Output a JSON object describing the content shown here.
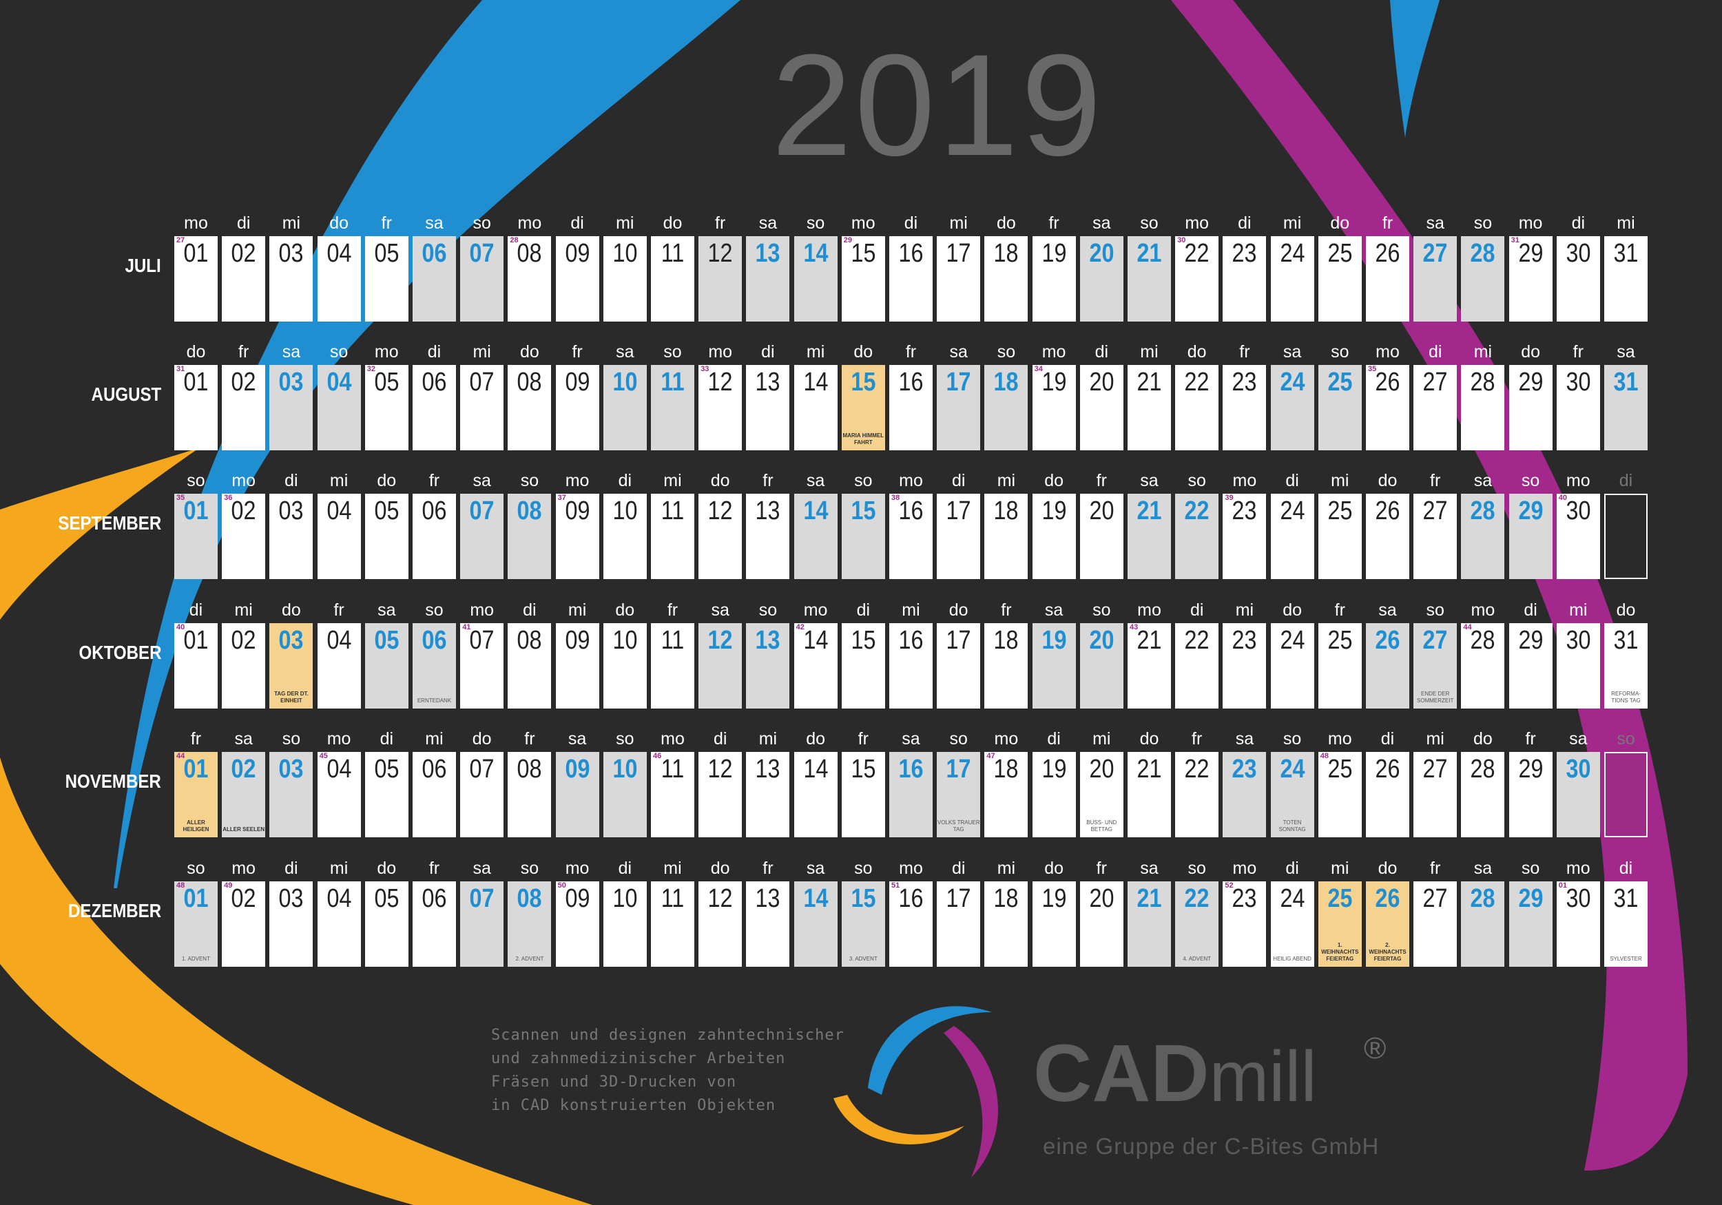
{
  "year": "2019",
  "colors": {
    "background": "#2b2a2a",
    "blue": "#1f8fd1",
    "magenta": "#a3288c",
    "orange": "#f5a81e",
    "weekend": "#d9d9d9",
    "holiday": "#f6d28f"
  },
  "months": [
    {
      "name": "JULI",
      "leading": 0,
      "trailing": 0,
      "weekdays": [
        "mo",
        "di",
        "mi",
        "do",
        "fr",
        "sa",
        "so",
        "mo",
        "di",
        "mi",
        "do",
        "fr",
        "sa",
        "so",
        "mo",
        "di",
        "mi",
        "do",
        "fr",
        "sa",
        "so",
        "mo",
        "di",
        "mi",
        "do",
        "fr",
        "sa",
        "so",
        "mo",
        "di",
        "mi"
      ],
      "days": [
        {
          "n": "01",
          "kw": "27"
        },
        {
          "n": "02"
        },
        {
          "n": "03"
        },
        {
          "n": "04"
        },
        {
          "n": "05"
        },
        {
          "n": "06",
          "t": "we"
        },
        {
          "n": "07",
          "t": "we"
        },
        {
          "n": "08",
          "kw": "28"
        },
        {
          "n": "09"
        },
        {
          "n": "10"
        },
        {
          "n": "11"
        },
        {
          "n": "12",
          "t": "gray"
        },
        {
          "n": "13",
          "t": "we"
        },
        {
          "n": "14",
          "t": "we"
        },
        {
          "n": "15",
          "kw": "29"
        },
        {
          "n": "16"
        },
        {
          "n": "17"
        },
        {
          "n": "18"
        },
        {
          "n": "19"
        },
        {
          "n": "20",
          "t": "we"
        },
        {
          "n": "21",
          "t": "we"
        },
        {
          "n": "22",
          "kw": "30"
        },
        {
          "n": "23"
        },
        {
          "n": "24"
        },
        {
          "n": "25"
        },
        {
          "n": "26"
        },
        {
          "n": "27",
          "t": "we"
        },
        {
          "n": "28",
          "t": "we"
        },
        {
          "n": "29",
          "kw": "31"
        },
        {
          "n": "30"
        },
        {
          "n": "31"
        }
      ]
    },
    {
      "name": "AUGUST",
      "weekdays": [
        "do",
        "fr",
        "sa",
        "so",
        "mo",
        "di",
        "mi",
        "do",
        "fr",
        "sa",
        "so",
        "mo",
        "di",
        "mi",
        "do",
        "fr",
        "sa",
        "so",
        "mo",
        "di",
        "mi",
        "do",
        "fr",
        "sa",
        "so",
        "mo",
        "di",
        "mi",
        "do",
        "fr",
        "sa"
      ],
      "days": [
        {
          "n": "01",
          "kw": "31"
        },
        {
          "n": "02"
        },
        {
          "n": "03",
          "t": "we"
        },
        {
          "n": "04",
          "t": "we"
        },
        {
          "n": "05",
          "kw": "32"
        },
        {
          "n": "06"
        },
        {
          "n": "07"
        },
        {
          "n": "08"
        },
        {
          "n": "09"
        },
        {
          "n": "10",
          "t": "we"
        },
        {
          "n": "11",
          "t": "we"
        },
        {
          "n": "12",
          "kw": "33"
        },
        {
          "n": "13"
        },
        {
          "n": "14"
        },
        {
          "n": "15",
          "t": "hol",
          "note": "MARIA HIMMEL FAHRT"
        },
        {
          "n": "16"
        },
        {
          "n": "17",
          "t": "we"
        },
        {
          "n": "18",
          "t": "we"
        },
        {
          "n": "19",
          "kw": "34"
        },
        {
          "n": "20"
        },
        {
          "n": "21"
        },
        {
          "n": "22"
        },
        {
          "n": "23"
        },
        {
          "n": "24",
          "t": "we"
        },
        {
          "n": "25",
          "t": "we"
        },
        {
          "n": "26",
          "kw": "35"
        },
        {
          "n": "27"
        },
        {
          "n": "28"
        },
        {
          "n": "29"
        },
        {
          "n": "30"
        },
        {
          "n": "31",
          "t": "we"
        }
      ]
    },
    {
      "name": "SEPTEMBER",
      "weekdays": [
        "so",
        "mo",
        "di",
        "mi",
        "do",
        "fr",
        "sa",
        "so",
        "mo",
        "di",
        "mi",
        "do",
        "fr",
        "sa",
        "so",
        "mo",
        "di",
        "mi",
        "do",
        "fr",
        "sa",
        "so",
        "mo",
        "di",
        "mi",
        "do",
        "fr",
        "sa",
        "so",
        "mo",
        "di"
      ],
      "days": [
        {
          "n": "01",
          "kw": "35",
          "t": "we"
        },
        {
          "n": "02",
          "kw": "36"
        },
        {
          "n": "03"
        },
        {
          "n": "04"
        },
        {
          "n": "05"
        },
        {
          "n": "06"
        },
        {
          "n": "07",
          "t": "we"
        },
        {
          "n": "08",
          "t": "we"
        },
        {
          "n": "09",
          "kw": "37"
        },
        {
          "n": "10"
        },
        {
          "n": "11"
        },
        {
          "n": "12"
        },
        {
          "n": "13"
        },
        {
          "n": "14",
          "t": "we"
        },
        {
          "n": "15",
          "t": "we"
        },
        {
          "n": "16",
          "kw": "38"
        },
        {
          "n": "17"
        },
        {
          "n": "18"
        },
        {
          "n": "19"
        },
        {
          "n": "20"
        },
        {
          "n": "21",
          "t": "we"
        },
        {
          "n": "22",
          "t": "we"
        },
        {
          "n": "23",
          "kw": "39"
        },
        {
          "n": "24"
        },
        {
          "n": "25"
        },
        {
          "n": "26"
        },
        {
          "n": "27"
        },
        {
          "n": "28",
          "t": "we"
        },
        {
          "n": "29",
          "t": "we"
        },
        {
          "n": "30",
          "kw": "40"
        },
        {
          "n": "",
          "t": "empty"
        }
      ]
    },
    {
      "name": "OKTOBER",
      "weekdays": [
        "di",
        "mi",
        "do",
        "fr",
        "sa",
        "so",
        "mo",
        "di",
        "mi",
        "do",
        "fr",
        "sa",
        "so",
        "mo",
        "di",
        "mi",
        "do",
        "fr",
        "sa",
        "so",
        "mo",
        "di",
        "mi",
        "do",
        "fr",
        "sa",
        "so",
        "mo",
        "di",
        "mi",
        "do"
      ],
      "days": [
        {
          "n": "01",
          "kw": "40"
        },
        {
          "n": "02"
        },
        {
          "n": "03",
          "t": "hol",
          "note": "TAG DER DT. EINHEIT"
        },
        {
          "n": "04"
        },
        {
          "n": "05",
          "t": "we"
        },
        {
          "n": "06",
          "t": "we",
          "note2": "ERNTEDANK"
        },
        {
          "n": "07",
          "kw": "41"
        },
        {
          "n": "08"
        },
        {
          "n": "09"
        },
        {
          "n": "10"
        },
        {
          "n": "11"
        },
        {
          "n": "12",
          "t": "we"
        },
        {
          "n": "13",
          "t": "we"
        },
        {
          "n": "14",
          "kw": "42"
        },
        {
          "n": "15"
        },
        {
          "n": "16"
        },
        {
          "n": "17"
        },
        {
          "n": "18"
        },
        {
          "n": "19",
          "t": "we"
        },
        {
          "n": "20",
          "t": "we"
        },
        {
          "n": "21",
          "kw": "43"
        },
        {
          "n": "22"
        },
        {
          "n": "23"
        },
        {
          "n": "24"
        },
        {
          "n": "25"
        },
        {
          "n": "26",
          "t": "we"
        },
        {
          "n": "27",
          "t": "we",
          "note2": "ENDE DER SOMMERZEIT"
        },
        {
          "n": "28",
          "kw": "44"
        },
        {
          "n": "29"
        },
        {
          "n": "30"
        },
        {
          "n": "31",
          "note2": "REFORMA- TIONS TAG"
        }
      ]
    },
    {
      "name": "NOVEMBER",
      "weekdays": [
        "fr",
        "sa",
        "so",
        "mo",
        "di",
        "mi",
        "do",
        "fr",
        "sa",
        "so",
        "mo",
        "di",
        "mi",
        "do",
        "fr",
        "sa",
        "so",
        "mo",
        "di",
        "mi",
        "do",
        "fr",
        "sa",
        "so",
        "mo",
        "di",
        "mi",
        "do",
        "fr",
        "sa",
        "so"
      ],
      "days": [
        {
          "n": "01",
          "kw": "44",
          "t": "hol",
          "note": "ALLER HEILIGEN"
        },
        {
          "n": "02",
          "t": "we",
          "note": "ALLER SEELEN"
        },
        {
          "n": "03",
          "t": "we"
        },
        {
          "n": "04",
          "kw": "45"
        },
        {
          "n": "05"
        },
        {
          "n": "06"
        },
        {
          "n": "07"
        },
        {
          "n": "08"
        },
        {
          "n": "09",
          "t": "we"
        },
        {
          "n": "10",
          "t": "we"
        },
        {
          "n": "11",
          "kw": "46"
        },
        {
          "n": "12"
        },
        {
          "n": "13"
        },
        {
          "n": "14"
        },
        {
          "n": "15"
        },
        {
          "n": "16",
          "t": "we"
        },
        {
          "n": "17",
          "t": "we",
          "note2": "VOLKS TRAUER TAG"
        },
        {
          "n": "18",
          "kw": "47"
        },
        {
          "n": "19"
        },
        {
          "n": "20",
          "note2": "BUSS- UND BETTAG"
        },
        {
          "n": "21"
        },
        {
          "n": "22"
        },
        {
          "n": "23",
          "t": "we"
        },
        {
          "n": "24",
          "t": "we",
          "note2": "TOTEN SONNTAG"
        },
        {
          "n": "25",
          "kw": "48"
        },
        {
          "n": "26"
        },
        {
          "n": "27"
        },
        {
          "n": "28"
        },
        {
          "n": "29"
        },
        {
          "n": "30",
          "t": "we"
        },
        {
          "n": "",
          "t": "empty-m"
        }
      ]
    },
    {
      "name": "DEZEMBER",
      "weekdays": [
        "so",
        "mo",
        "di",
        "mi",
        "do",
        "fr",
        "sa",
        "so",
        "mo",
        "di",
        "mi",
        "do",
        "fr",
        "sa",
        "so",
        "mo",
        "di",
        "mi",
        "do",
        "fr",
        "sa",
        "so",
        "mo",
        "di",
        "mi",
        "do",
        "fr",
        "sa",
        "so",
        "mo",
        "di"
      ],
      "days": [
        {
          "n": "01",
          "kw": "48",
          "t": "we",
          "note2": "1. ADVENT"
        },
        {
          "n": "02",
          "kw": "49"
        },
        {
          "n": "03"
        },
        {
          "n": "04"
        },
        {
          "n": "05"
        },
        {
          "n": "06"
        },
        {
          "n": "07",
          "t": "we"
        },
        {
          "n": "08",
          "t": "we",
          "note2": "2. ADVENT"
        },
        {
          "n": "09",
          "kw": "50"
        },
        {
          "n": "10"
        },
        {
          "n": "11"
        },
        {
          "n": "12"
        },
        {
          "n": "13"
        },
        {
          "n": "14",
          "t": "we"
        },
        {
          "n": "15",
          "t": "we",
          "note2": "3. ADVENT"
        },
        {
          "n": "16",
          "kw": "51"
        },
        {
          "n": "17"
        },
        {
          "n": "18"
        },
        {
          "n": "19"
        },
        {
          "n": "20"
        },
        {
          "n": "21",
          "t": "we"
        },
        {
          "n": "22",
          "t": "we",
          "note2": "4. ADVENT"
        },
        {
          "n": "23",
          "kw": "52"
        },
        {
          "n": "24",
          "note2": "HEILIG ABEND"
        },
        {
          "n": "25",
          "t": "hol",
          "note": "1. WEIHNACHTS FEIERTAG"
        },
        {
          "n": "26",
          "t": "hol",
          "note": "2. WEIHNACHTS FEIERTAG"
        },
        {
          "n": "27"
        },
        {
          "n": "28",
          "t": "we"
        },
        {
          "n": "29",
          "t": "we"
        },
        {
          "n": "30",
          "kw": "01"
        },
        {
          "n": "31",
          "note2": "SYLVESTER"
        }
      ]
    }
  ],
  "tagline": [
    "Scannen und designen zahntechnischer",
    "und zahnmedizinischer Arbeiten",
    "Fräsen und 3D-Drucken von",
    "in CAD konstruierten Objekten"
  ],
  "brand": {
    "bold": "CAD",
    "light": "mill",
    "reg": "®",
    "sub": "eine Gruppe der C-Bites GmbH"
  }
}
